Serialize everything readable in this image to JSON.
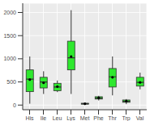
{
  "chart_data": {
    "type": "box",
    "categories": [
      "His",
      "Ile",
      "Leu",
      "Lys",
      "Met",
      "Phe",
      "Thr",
      "Trp",
      "Val"
    ],
    "min": [
      30,
      240,
      280,
      240,
      0,
      100,
      210,
      20,
      340
    ],
    "q1": [
      290,
      370,
      310,
      760,
      20,
      130,
      390,
      60,
      410
    ],
    "median": [
      560,
      500,
      390,
      1020,
      30,
      150,
      610,
      80,
      490
    ],
    "q3": [
      760,
      600,
      470,
      1380,
      40,
      180,
      790,
      110,
      600
    ],
    "max": [
      1050,
      730,
      530,
      2050,
      50,
      200,
      1050,
      130,
      700
    ],
    "mean": [
      550,
      480,
      400,
      1050,
      30,
      155,
      600,
      85,
      490
    ],
    "color": "#2ee82e",
    "ylim": [
      -100,
      2200
    ],
    "yticks": [
      0,
      500,
      1000,
      1500,
      2000
    ],
    "grid": true
  }
}
